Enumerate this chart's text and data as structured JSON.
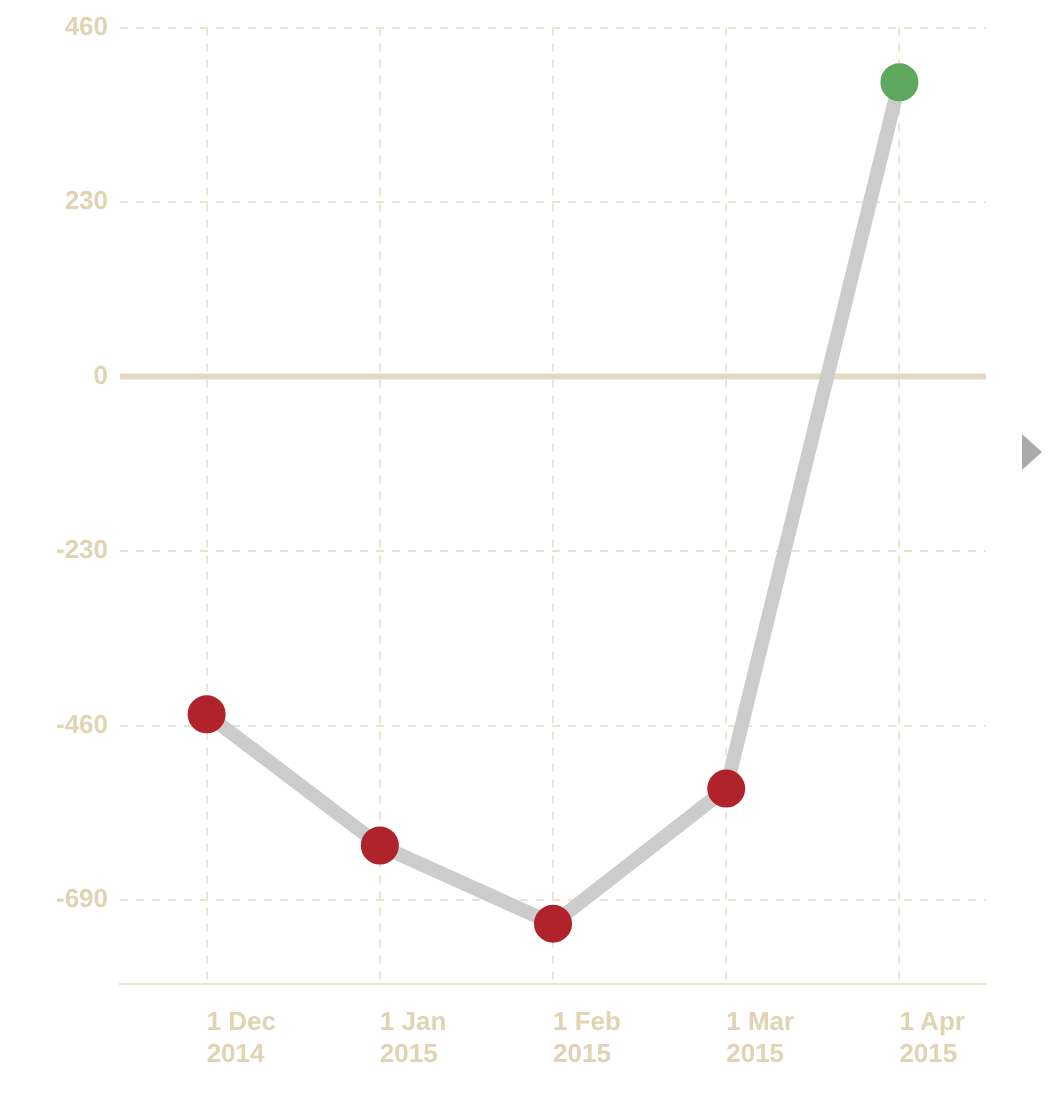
{
  "chart_data": {
    "type": "line",
    "categories": [
      "1 Dec 2014",
      "1 Jan 2015",
      "1 Feb 2015",
      "1 Mar 2015",
      "1 Apr 2015"
    ],
    "series": [
      {
        "color": "#cccccc",
        "colors": [
          "#b0232b",
          "#b0232b",
          "#b0232b",
          "#b0232b",
          "#5ea85e"
        ],
        "values": [
          -445,
          -618,
          -721,
          -543,
          388
        ]
      }
    ],
    "ylim": [
      -800,
      460
    ],
    "yticks": [
      -690,
      -460,
      -230,
      0,
      230,
      460
    ],
    "ref_lines": [
      {
        "axis": "y",
        "value": 0,
        "color": "#e2dac2"
      }
    ],
    "grid": true,
    "marker": "circle",
    "line_style": "solid",
    "legend": false
  }
}
